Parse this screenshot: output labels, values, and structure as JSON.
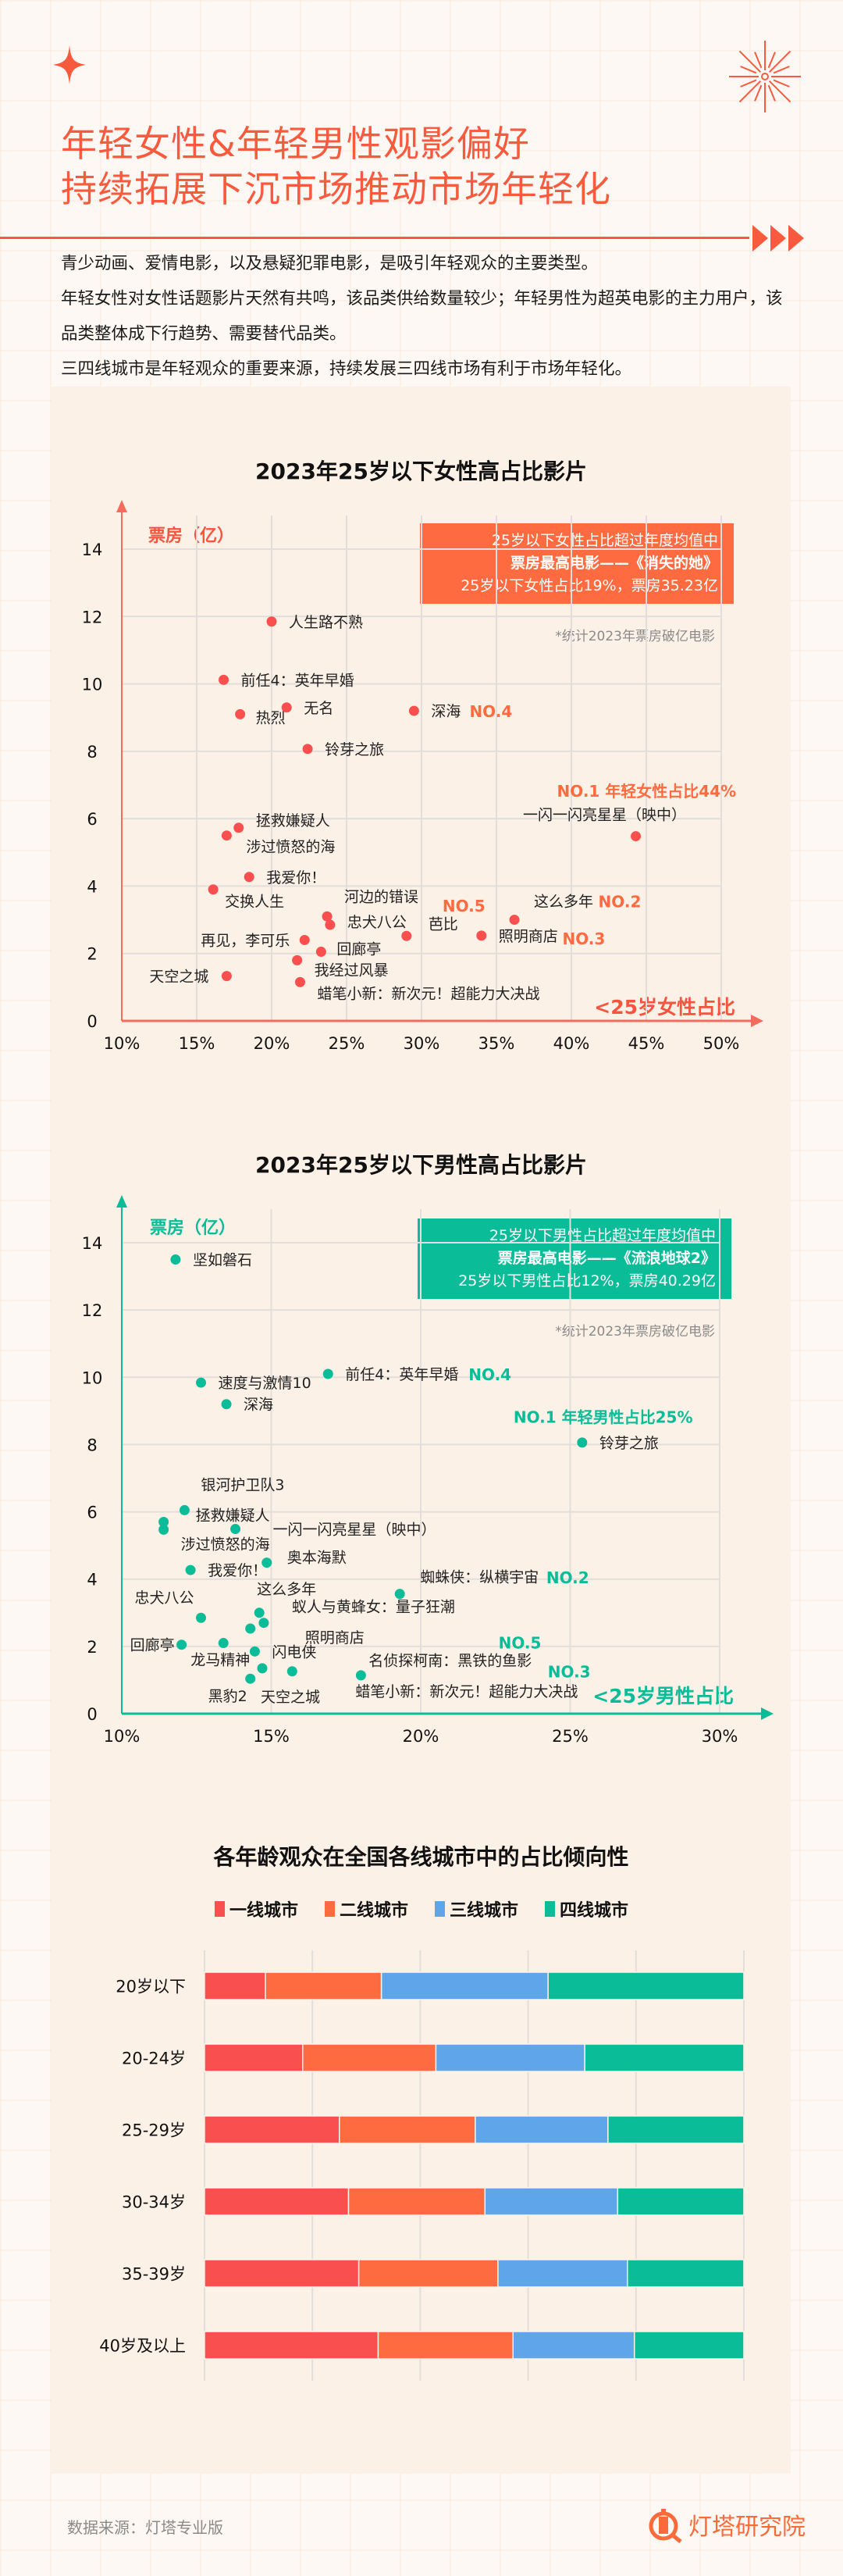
{
  "header": {
    "title_line1": "年轻女性&年轻男性观影偏好",
    "title_line2": "持续拓展下沉市场推动市场年轻化",
    "paragraphs": [
      "青少动画、爱情电影，以及悬疑犯罪电影，是吸引年轻观众的主要类型。",
      "年轻女性对女性话题影片天然有共鸣，该品类供给数量较少；年轻男性为超英电影的主力用户，该品类整体成下行趋势、需要替代品类。",
      "三四线城市是年轻观众的重要来源，持续发展三四线市场有利于市场年轻化。"
    ]
  },
  "colors": {
    "accent": "#f85a3e",
    "female": "#f94f4f",
    "female_box": "#ff6b40",
    "male": "#0bbc98",
    "tier1": "#f94f4f",
    "tier2": "#ff6b40",
    "tier3": "#5ea5ea",
    "tier4": "#0bbc98"
  },
  "chart_data": [
    {
      "type": "scatter",
      "title": "2023年25岁以下女性高占比影片",
      "ylabel": "票房（亿）",
      "xlabel": "<25岁女性占比",
      "xlim": [
        10,
        50
      ],
      "ylim": [
        0,
        14
      ],
      "x_ticks": [
        "10%",
        "15%",
        "20%",
        "25%",
        "30%",
        "35%",
        "40%",
        "45%",
        "50%"
      ],
      "y_ticks": [
        "0",
        "2",
        "4",
        "6",
        "8",
        "10",
        "12",
        "14"
      ],
      "grid": true,
      "note": "*统计2023年票房破亿电影",
      "callout": [
        "25岁以下女性占比超过年度均值中",
        "票房最高电影——《消失的她》",
        "25岁以下女性占比19%，票房35.23亿"
      ],
      "points": [
        {
          "name": "人生路不熟",
          "x": 20.0,
          "y": 11.85
        },
        {
          "name": "前任4：英年早婚",
          "x": 16.8,
          "y": 10.12
        },
        {
          "name": "热烈",
          "x": 17.9,
          "y": 9.1
        },
        {
          "name": "无名",
          "x": 21.0,
          "y": 9.3
        },
        {
          "name": "深海",
          "x": 29.5,
          "y": 9.2
        },
        {
          "name": "铃芽之旅",
          "x": 22.4,
          "y": 8.07
        },
        {
          "name": "一闪一闪亮星星（映中）",
          "x": 44.3,
          "y": 5.48
        },
        {
          "name": "拯救嫌疑人",
          "x": 17.8,
          "y": 5.73
        },
        {
          "name": "涉过愤怒的海",
          "x": 17.0,
          "y": 5.5
        },
        {
          "name": "我爱你！",
          "x": 18.5,
          "y": 4.27
        },
        {
          "name": "交换人生",
          "x": 16.1,
          "y": 3.9
        },
        {
          "name": "河边的错误",
          "x": 23.7,
          "y": 3.1
        },
        {
          "name": "忠犬八公",
          "x": 23.9,
          "y": 2.85
        },
        {
          "name": "芭比",
          "x": 29.0,
          "y": 2.52
        },
        {
          "name": "照明商店",
          "x": 34.0,
          "y": 2.53
        },
        {
          "name": "这么多年",
          "x": 36.2,
          "y": 3.0
        },
        {
          "name": "再见，李可乐",
          "x": 22.2,
          "y": 2.4
        },
        {
          "name": "回廊亭",
          "x": 23.3,
          "y": 2.05
        },
        {
          "name": "我经过风暴",
          "x": 21.7,
          "y": 1.8
        },
        {
          "name": "天空之城",
          "x": 17.0,
          "y": 1.33
        },
        {
          "name": "蜡笔小新：新次元！超能力大决战",
          "x": 21.9,
          "y": 1.15
        }
      ],
      "rank_tags": [
        "NO.4",
        "NO.1 年轻女性占比44%",
        "NO.5",
        "NO.2",
        "NO.3"
      ]
    },
    {
      "type": "scatter",
      "title": "2023年25岁以下男性高占比影片",
      "ylabel": "票房（亿）",
      "xlabel": "<25岁男性占比",
      "xlim": [
        10,
        30
      ],
      "ylim": [
        0,
        14
      ],
      "x_ticks": [
        "10%",
        "15%",
        "20%",
        "25%",
        "30%"
      ],
      "y_ticks": [
        "0",
        "2",
        "4",
        "6",
        "8",
        "10",
        "12",
        "14"
      ],
      "grid": true,
      "note": "*统计2023年票房破亿电影",
      "callout": [
        "25岁以下男性占比超过年度均值中",
        "票房最高电影——《流浪地球2》",
        "25岁以下男性占比12%，票房40.29亿"
      ],
      "points": [
        {
          "name": "坚如磐石",
          "x": 11.8,
          "y": 13.5
        },
        {
          "name": "速度与激情10",
          "x": 12.65,
          "y": 9.84
        },
        {
          "name": "深海",
          "x": 13.5,
          "y": 9.2
        },
        {
          "name": "前任4：英年早婚",
          "x": 16.9,
          "y": 10.1
        },
        {
          "name": "铃芽之旅",
          "x": 25.4,
          "y": 8.06
        },
        {
          "name": "银河护卫队3",
          "x": 12.1,
          "y": 6.05
        },
        {
          "name": "拯救嫌疑人",
          "x": 11.4,
          "y": 5.7
        },
        {
          "name": "涉过愤怒的海",
          "x": 11.4,
          "y": 5.47
        },
        {
          "name": "一闪一闪亮星星（映中）",
          "x": 13.8,
          "y": 5.49
        },
        {
          "name": "奥本海默",
          "x": 14.85,
          "y": 4.49
        },
        {
          "name": "我爱你！",
          "x": 12.3,
          "y": 4.27
        },
        {
          "name": "蜘蛛侠：纵横宇宙",
          "x": 19.3,
          "y": 3.56
        },
        {
          "name": "忠犬八公",
          "x": 12.65,
          "y": 2.85
        },
        {
          "name": "这么多年",
          "x": 14.6,
          "y": 3.0
        },
        {
          "name": "蚁人与黄蜂女：量子狂潮",
          "x": 14.75,
          "y": 2.7
        },
        {
          "name": "照明商店",
          "x": 14.3,
          "y": 2.53
        },
        {
          "name": "回廊亭",
          "x": 12.0,
          "y": 2.05
        },
        {
          "name": "龙马精神",
          "x": 13.4,
          "y": 2.1
        },
        {
          "name": "闪电侠",
          "x": 14.45,
          "y": 1.85
        },
        {
          "name": "天空之城",
          "x": 14.7,
          "y": 1.35
        },
        {
          "name": "名侦探柯南：黑铁的鱼影",
          "x": 15.7,
          "y": 1.26
        },
        {
          "name": "黑豹2",
          "x": 14.3,
          "y": 1.04
        },
        {
          "name": "蜡笔小新：新次元！超能力大决战",
          "x": 18.0,
          "y": 1.14
        }
      ],
      "rank_tags": [
        "NO.4",
        "NO.1 年轻男性占比25%",
        "NO.2",
        "NO.5",
        "NO.3"
      ]
    },
    {
      "type": "bar",
      "stacked": true,
      "orientation": "horizontal",
      "title": "各年龄观众在全国各线城市中的占比倾向性",
      "legend": [
        "一线城市",
        "二线城市",
        "三线城市",
        "四线城市"
      ],
      "legend_position": "top",
      "categories": [
        "20岁以下",
        "20-24岁",
        "25-29岁",
        "30-34岁",
        "35-39岁",
        "40岁及以上"
      ],
      "series": [
        {
          "name": "一线城市",
          "values": [
            11.3,
            18.2,
            25.0,
            26.7,
            28.6,
            32.2
          ]
        },
        {
          "name": "二线城市",
          "values": [
            21.5,
            24.7,
            25.2,
            25.3,
            25.8,
            25.0
          ]
        },
        {
          "name": "三线城市",
          "values": [
            30.9,
            27.6,
            24.6,
            24.6,
            24.0,
            22.5
          ]
        },
        {
          "name": "四线城市",
          "values": [
            36.3,
            29.5,
            25.2,
            23.4,
            21.6,
            20.3
          ]
        }
      ],
      "xlim": [
        0,
        100
      ],
      "grid": true
    }
  ],
  "footer": {
    "source": "数据来源：灯塔专业版",
    "brand": "灯塔研究院"
  }
}
